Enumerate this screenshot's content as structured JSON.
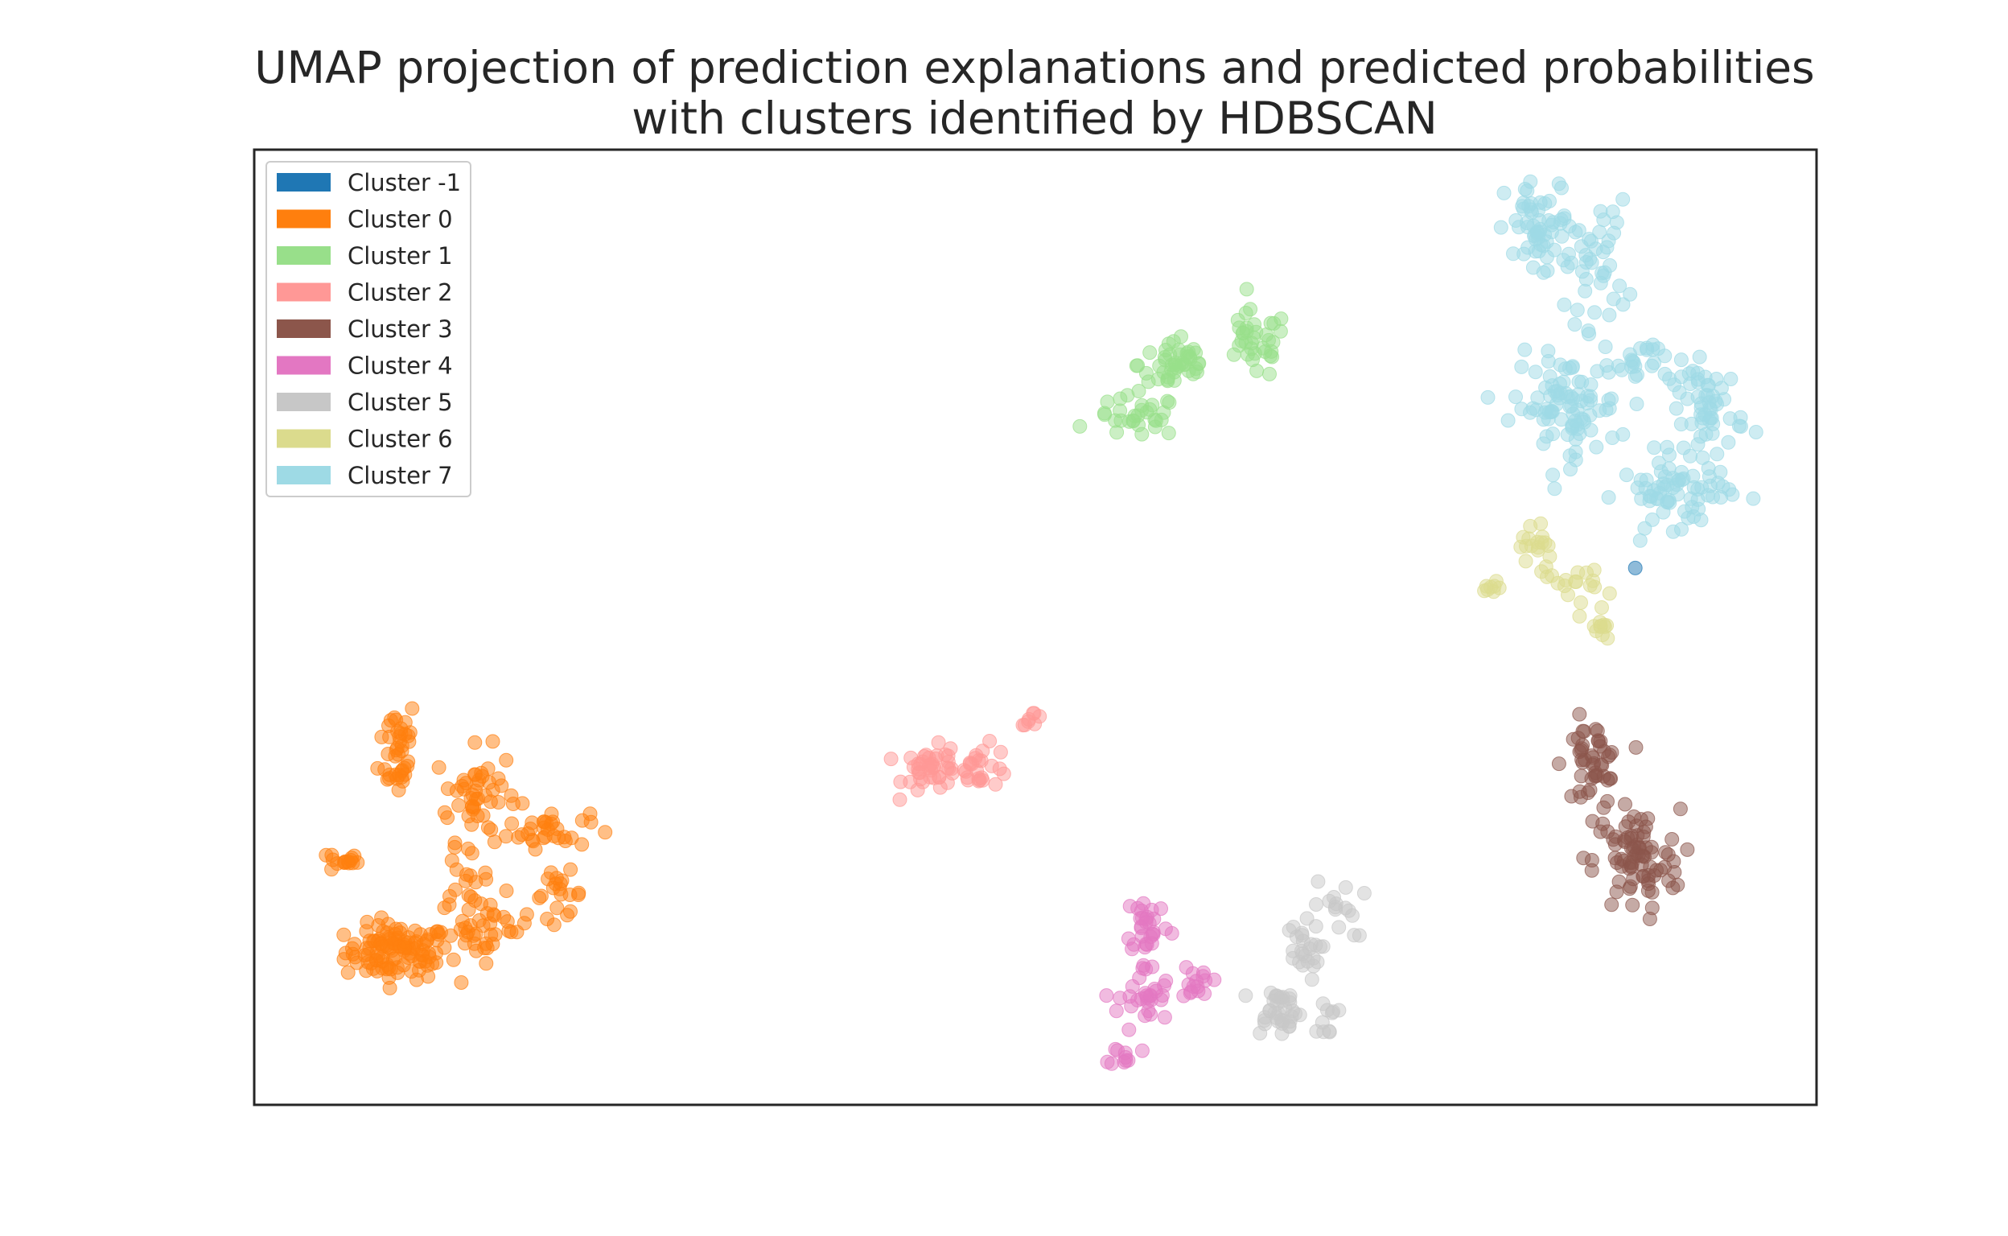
{
  "chart_data": {
    "type": "scatter",
    "title_lines": [
      "UMAP projection of prediction explanations and predicted probabilities",
      "with clusters identified by HDBSCAN"
    ],
    "xlabel": "",
    "ylabel": "",
    "axis_ticks": "none",
    "grid": false,
    "legend_position": "upper left",
    "xlim": [
      0,
      100
    ],
    "ylim": [
      0,
      100
    ],
    "marker_alpha": 0.5,
    "series": [
      {
        "name": "Cluster -1",
        "color": "#1f77b4",
        "blobs": [
          {
            "cx": 88.4,
            "cy": 56.2,
            "rx": 0.3,
            "ry": 0.3,
            "n": 1
          }
        ]
      },
      {
        "name": "Cluster 0",
        "color": "#ff7f0e",
        "blobs": [
          {
            "cx": 9.2,
            "cy": 16.0,
            "rx": 2.8,
            "ry": 2.4,
            "n": 110
          },
          {
            "cx": 5.7,
            "cy": 25.5,
            "rx": 0.8,
            "ry": 1.0,
            "n": 15
          },
          {
            "cx": 9.2,
            "cy": 37.5,
            "rx": 1.0,
            "ry": 4.5,
            "n": 40
          },
          {
            "cx": 14.2,
            "cy": 32.5,
            "rx": 2.2,
            "ry": 4.0,
            "n": 50
          },
          {
            "cx": 18.8,
            "cy": 28.8,
            "rx": 2.2,
            "ry": 1.6,
            "n": 30
          },
          {
            "cx": 14.8,
            "cy": 18.5,
            "rx": 2.5,
            "ry": 2.8,
            "n": 40
          },
          {
            "cx": 19.5,
            "cy": 22.0,
            "rx": 1.3,
            "ry": 2.0,
            "n": 20
          },
          {
            "cx": 13.5,
            "cy": 24.0,
            "rx": 1.2,
            "ry": 2.0,
            "n": 15
          }
        ]
      },
      {
        "name": "Cluster 1",
        "color": "#98df8a",
        "blobs": [
          {
            "cx": 59.0,
            "cy": 77.5,
            "rx": 2.0,
            "ry": 2.5,
            "n": 45
          },
          {
            "cx": 64.0,
            "cy": 79.5,
            "rx": 1.8,
            "ry": 3.0,
            "n": 35
          },
          {
            "cx": 56.5,
            "cy": 72.0,
            "rx": 2.3,
            "ry": 1.8,
            "n": 30
          }
        ]
      },
      {
        "name": "Cluster 2",
        "color": "#ff9896",
        "blobs": [
          {
            "cx": 43.5,
            "cy": 35.0,
            "rx": 1.6,
            "ry": 2.0,
            "n": 40
          },
          {
            "cx": 46.5,
            "cy": 35.5,
            "rx": 1.6,
            "ry": 1.8,
            "n": 25
          },
          {
            "cx": 49.8,
            "cy": 40.5,
            "rx": 0.6,
            "ry": 0.6,
            "n": 8
          }
        ]
      },
      {
        "name": "Cluster 3",
        "color": "#8c564b",
        "blobs": [
          {
            "cx": 85.6,
            "cy": 35.5,
            "rx": 1.5,
            "ry": 4.0,
            "n": 50
          },
          {
            "cx": 88.5,
            "cy": 25.5,
            "rx": 2.3,
            "ry": 4.5,
            "n": 80
          }
        ]
      },
      {
        "name": "Cluster 4",
        "color": "#e377c2",
        "blobs": [
          {
            "cx": 57.2,
            "cy": 19.0,
            "rx": 1.2,
            "ry": 2.8,
            "n": 30
          },
          {
            "cx": 57.0,
            "cy": 11.0,
            "rx": 1.4,
            "ry": 3.2,
            "n": 30
          },
          {
            "cx": 60.3,
            "cy": 13.0,
            "rx": 0.8,
            "ry": 1.6,
            "n": 15
          },
          {
            "cx": 55.8,
            "cy": 5.2,
            "rx": 0.8,
            "ry": 1.0,
            "n": 10
          }
        ]
      },
      {
        "name": "Cluster 5",
        "color": "#c7c7c7",
        "blobs": [
          {
            "cx": 65.5,
            "cy": 10.0,
            "rx": 1.3,
            "ry": 2.2,
            "n": 35
          },
          {
            "cx": 67.0,
            "cy": 16.0,
            "rx": 1.0,
            "ry": 2.5,
            "n": 25
          },
          {
            "cx": 69.5,
            "cy": 20.5,
            "rx": 1.4,
            "ry": 2.5,
            "n": 15
          },
          {
            "cx": 68.5,
            "cy": 9.0,
            "rx": 0.7,
            "ry": 1.5,
            "n": 10
          }
        ]
      },
      {
        "name": "Cluster 6",
        "color": "#dbdb8d",
        "blobs": [
          {
            "cx": 82.0,
            "cy": 58.5,
            "rx": 0.8,
            "ry": 2.8,
            "n": 18
          },
          {
            "cx": 84.5,
            "cy": 55.0,
            "rx": 1.5,
            "ry": 1.2,
            "n": 14
          },
          {
            "cx": 86.0,
            "cy": 50.5,
            "rx": 0.9,
            "ry": 2.5,
            "n": 14
          },
          {
            "cx": 79.2,
            "cy": 53.8,
            "rx": 0.6,
            "ry": 0.8,
            "n": 8
          }
        ]
      },
      {
        "name": "Cluster 7",
        "color": "#9edae5",
        "blobs": [
          {
            "cx": 82.5,
            "cy": 91.5,
            "rx": 2.0,
            "ry": 4.5,
            "n": 60
          },
          {
            "cx": 86.0,
            "cy": 88.0,
            "rx": 1.6,
            "ry": 5.5,
            "n": 40
          },
          {
            "cx": 84.0,
            "cy": 73.0,
            "rx": 2.8,
            "ry": 4.5,
            "n": 90
          },
          {
            "cx": 93.0,
            "cy": 73.0,
            "rx": 2.0,
            "ry": 4.0,
            "n": 60
          },
          {
            "cx": 91.0,
            "cy": 64.0,
            "rx": 3.0,
            "ry": 2.8,
            "n": 65
          },
          {
            "cx": 88.5,
            "cy": 78.0,
            "rx": 1.5,
            "ry": 1.8,
            "n": 20
          }
        ]
      }
    ]
  }
}
